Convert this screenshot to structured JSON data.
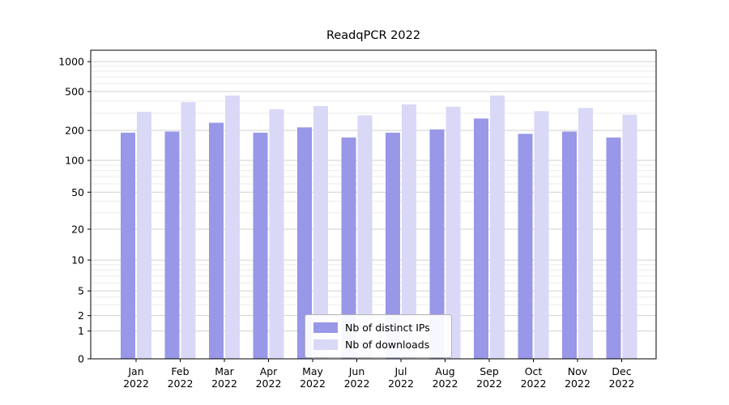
{
  "chart_data": {
    "type": "bar",
    "title": "ReadqPCR 2022",
    "xlabel": "",
    "ylabel": "",
    "yscale": "symlog",
    "ylim": [
      0,
      1300
    ],
    "grid": "horizontal",
    "legend_position": "bottom-center-inside",
    "year": "2022",
    "categories": [
      "Jan",
      "Feb",
      "Mar",
      "Apr",
      "May",
      "Jun",
      "Jul",
      "Aug",
      "Sep",
      "Oct",
      "Nov",
      "Dec"
    ],
    "series": [
      {
        "name": "Nb of distinct IPs",
        "color": "#9897e8",
        "values": [
          190,
          195,
          240,
          190,
          215,
          170,
          190,
          205,
          265,
          185,
          195,
          170
        ]
      },
      {
        "name": "Nb of downloads",
        "color": "#d9d8f6",
        "values": [
          310,
          390,
          455,
          330,
          355,
          285,
          370,
          350,
          455,
          315,
          340,
          290
        ]
      }
    ],
    "yticks": [
      0,
      1,
      2,
      5,
      10,
      20,
      50,
      100,
      200,
      500,
      1000
    ],
    "y_minor_ticks": [
      3,
      4,
      6,
      7,
      8,
      9,
      30,
      40,
      60,
      70,
      80,
      90,
      300,
      400,
      600,
      700,
      800,
      900
    ],
    "colors": {
      "major_grid": "#d0d0d0",
      "minor_grid": "#ebebeb",
      "axis": "#000000",
      "text": "#000000"
    }
  }
}
